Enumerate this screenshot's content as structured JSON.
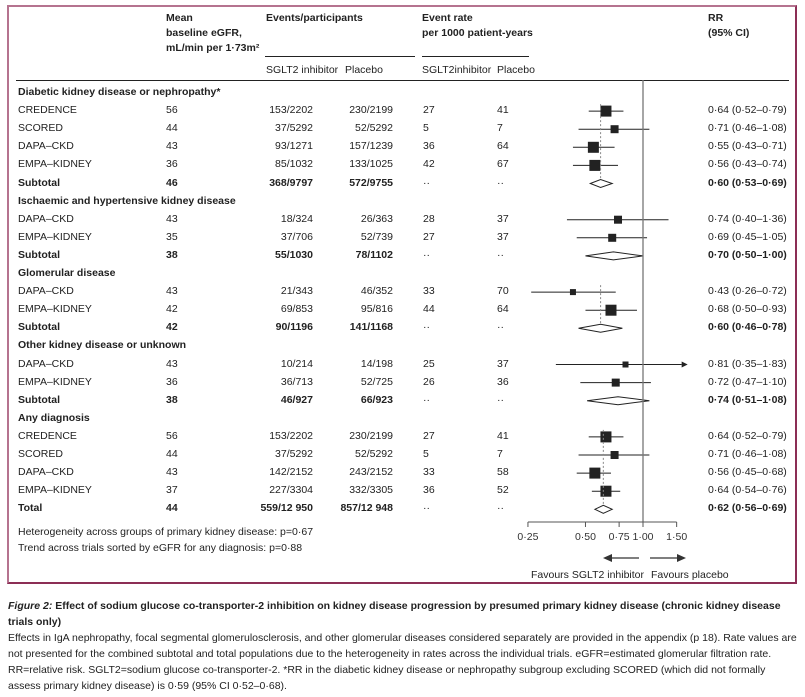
{
  "headers": {
    "egfr": [
      "Mean",
      "baseline eGFR,",
      "mL/min per 1·73m²"
    ],
    "events": "Events/participants",
    "rate": [
      "Event rate",
      "per 1000 patient-years"
    ],
    "rr": [
      "RR",
      "(95% CI)"
    ],
    "events_sub": [
      "SGLT2 inhibitor",
      "Placebo"
    ],
    "rate_sub": [
      "SGLT2inhibitor",
      "Placebo"
    ]
  },
  "footnotes": [
    "Heterogeneity across groups of primary kidney disease: p=0·67",
    "Trend across trials sorted by eGFR for any diagnosis: p=0·88"
  ],
  "caption": {
    "fig_label": "Figure 2:",
    "title": " Effect of sodium glucose co-transporter-2 inhibition on kidney disease progression by presumed primary kidney disease (chronic kidney disease trials only)",
    "body": "Effects in IgA nephropathy, focal segmental glomerulosclerosis, and other glomerular diseases considered separately are provided in the appendix (p 18). Rate values are not presented for the combined subtotal and total populations due to the heterogeneity in rates across the individual trials. eGFR=estimated glomerular filtration rate. RR=relative risk. SGLT2=sodium glucose co-transporter-2. *RR in the diabetic kidney disease or nephropathy subgroup excluding SCORED (which did not formally assess primary kidney disease) is 0·59 (95% CI 0·52–0·68)."
  },
  "chart_data": {
    "type": "forest",
    "title": "Effect of SGLT2 inhibition on kidney disease progression by presumed primary kidney disease",
    "xscale": "log",
    "xlim": [
      0.25,
      1.5
    ],
    "xticks": [
      0.25,
      0.5,
      0.75,
      1.0,
      1.5
    ],
    "xtick_labels": [
      "0·25",
      "0·50",
      "0·75",
      "1·00",
      "1·50"
    ],
    "reference_line": 1.0,
    "favours_left": "Favours SGLT2 inhibitor",
    "favours_right": "Favours placebo",
    "groups": [
      {
        "name": "Diabetic kidney disease or nephropathy*",
        "pooled_line": 0.6,
        "rows": [
          {
            "label": "CREDENCE",
            "egfr": "56",
            "ev_sglt2": "153/2202",
            "ev_pbo": "230/2199",
            "rate_sglt2": "27",
            "rate_pbo": "41",
            "rr": 0.64,
            "lo": 0.52,
            "hi": 0.79,
            "ci": "0·64 (0·52–0·79)",
            "w": 3
          },
          {
            "label": "SCORED",
            "egfr": "44",
            "ev_sglt2": "37/5292",
            "ev_pbo": "52/5292",
            "rate_sglt2": "5",
            "rate_pbo": "7",
            "rr": 0.71,
            "lo": 0.46,
            "hi": 1.08,
            "ci": "0·71 (0·46–1·08)",
            "w": 2
          },
          {
            "label": "DAPA–CKD",
            "egfr": "43",
            "ev_sglt2": "93/1271",
            "ev_pbo": "157/1239",
            "rate_sglt2": "36",
            "rate_pbo": "64",
            "rr": 0.55,
            "lo": 0.43,
            "hi": 0.71,
            "ci": "0·55 (0·43–0·71)",
            "w": 3
          },
          {
            "label": "EMPA–KIDNEY",
            "egfr": "36",
            "ev_sglt2": "85/1032",
            "ev_pbo": "133/1025",
            "rate_sglt2": "42",
            "rate_pbo": "67",
            "rr": 0.56,
            "lo": 0.43,
            "hi": 0.74,
            "ci": "0·56 (0·43–0·74)",
            "w": 3
          }
        ],
        "subtotal": {
          "label": "Subtotal",
          "egfr": "46",
          "ev_sglt2": "368/9797",
          "ev_pbo": "572/9755",
          "rate_sglt2": "··",
          "rate_pbo": "··",
          "rr": 0.6,
          "lo": 0.53,
          "hi": 0.69,
          "ci": "0·60 (0·53–0·69)"
        }
      },
      {
        "name": "Ischaemic and hypertensive kidney disease",
        "pooled_line": null,
        "rows": [
          {
            "label": "DAPA–CKD",
            "egfr": "43",
            "ev_sglt2": "18/324",
            "ev_pbo": "26/363",
            "rate_sglt2": "28",
            "rate_pbo": "37",
            "rr": 0.74,
            "lo": 0.4,
            "hi": 1.36,
            "ci": "0·74 (0·40–1·36)",
            "w": 2
          },
          {
            "label": "EMPA–KIDNEY",
            "egfr": "35",
            "ev_sglt2": "37/706",
            "ev_pbo": "52/739",
            "rate_sglt2": "27",
            "rate_pbo": "37",
            "rr": 0.69,
            "lo": 0.45,
            "hi": 1.05,
            "ci": "0·69 (0·45–1·05)",
            "w": 2
          }
        ],
        "subtotal": {
          "label": "Subtotal",
          "egfr": "38",
          "ev_sglt2": "55/1030",
          "ev_pbo": "78/1102",
          "rate_sglt2": "··",
          "rate_pbo": "··",
          "rr": 0.7,
          "lo": 0.5,
          "hi": 1.0,
          "ci": "0·70 (0·50–1·00)"
        }
      },
      {
        "name": "Glomerular disease",
        "pooled_line": 0.6,
        "rows": [
          {
            "label": "DAPA–CKD",
            "egfr": "43",
            "ev_sglt2": "21/343",
            "ev_pbo": "46/352",
            "rate_sglt2": "33",
            "rate_pbo": "70",
            "rr": 0.43,
            "lo": 0.26,
            "hi": 0.72,
            "ci": "0·43 (0·26–0·72)",
            "w": 1
          },
          {
            "label": "EMPA–KIDNEY",
            "egfr": "42",
            "ev_sglt2": "69/853",
            "ev_pbo": "95/816",
            "rate_sglt2": "44",
            "rate_pbo": "64",
            "rr": 0.68,
            "lo": 0.5,
            "hi": 0.93,
            "ci": "0·68 (0·50–0·93)",
            "w": 3
          }
        ],
        "subtotal": {
          "label": "Subtotal",
          "egfr": "42",
          "ev_sglt2": "90/1196",
          "ev_pbo": "141/1168",
          "rate_sglt2": "··",
          "rate_pbo": "··",
          "rr": 0.6,
          "lo": 0.46,
          "hi": 0.78,
          "ci": "0·60 (0·46–0·78)"
        }
      },
      {
        "name": "Other kidney disease or unknown",
        "pooled_line": null,
        "rows": [
          {
            "label": "DAPA–CKD",
            "egfr": "43",
            "ev_sglt2": "10/214",
            "ev_pbo": "14/198",
            "rate_sglt2": "25",
            "rate_pbo": "37",
            "rr": 0.81,
            "lo": 0.35,
            "hi": 1.83,
            "ci": "0·81 (0·35–1·83)",
            "w": 1,
            "arrow_right": true
          },
          {
            "label": "EMPA–KIDNEY",
            "egfr": "36",
            "ev_sglt2": "36/713",
            "ev_pbo": "52/725",
            "rate_sglt2": "26",
            "rate_pbo": "36",
            "rr": 0.72,
            "lo": 0.47,
            "hi": 1.1,
            "ci": "0·72 (0·47–1·10)",
            "w": 2
          }
        ],
        "subtotal": {
          "label": "Subtotal",
          "egfr": "38",
          "ev_sglt2": "46/927",
          "ev_pbo": "66/923",
          "rate_sglt2": "··",
          "rate_pbo": "··",
          "rr": 0.74,
          "lo": 0.51,
          "hi": 1.08,
          "ci": "0·74 (0·51–1·08)"
        }
      },
      {
        "name": "Any diagnosis",
        "pooled_line": 0.62,
        "rows": [
          {
            "label": "CREDENCE",
            "egfr": "56",
            "ev_sglt2": "153/2202",
            "ev_pbo": "230/2199",
            "rate_sglt2": "27",
            "rate_pbo": "41",
            "rr": 0.64,
            "lo": 0.52,
            "hi": 0.79,
            "ci": "0·64 (0·52–0·79)",
            "w": 3
          },
          {
            "label": "SCORED",
            "egfr": "44",
            "ev_sglt2": "37/5292",
            "ev_pbo": "52/5292",
            "rate_sglt2": "5",
            "rate_pbo": "7",
            "rr": 0.71,
            "lo": 0.46,
            "hi": 1.08,
            "ci": "0·71 (0·46–1·08)",
            "w": 2
          },
          {
            "label": "DAPA–CKD",
            "egfr": "43",
            "ev_sglt2": "142/2152",
            "ev_pbo": "243/2152",
            "rate_sglt2": "33",
            "rate_pbo": "58",
            "rr": 0.56,
            "lo": 0.45,
            "hi": 0.68,
            "ci": "0·56 (0·45–0·68)",
            "w": 3
          },
          {
            "label": "EMPA–KIDNEY",
            "egfr": "37",
            "ev_sglt2": "227/3304",
            "ev_pbo": "332/3305",
            "rate_sglt2": "36",
            "rate_pbo": "52",
            "rr": 0.64,
            "lo": 0.54,
            "hi": 0.76,
            "ci": "0·64 (0·54–0·76)",
            "w": 3
          }
        ],
        "subtotal": {
          "label": "Total",
          "egfr": "44",
          "ev_sglt2": "559/12 950",
          "ev_pbo": "857/12 948",
          "rate_sglt2": "··",
          "rate_pbo": "··",
          "rr": 0.62,
          "lo": 0.56,
          "hi": 0.69,
          "ci": "0·62 (0·56–0·69)"
        }
      }
    ]
  }
}
